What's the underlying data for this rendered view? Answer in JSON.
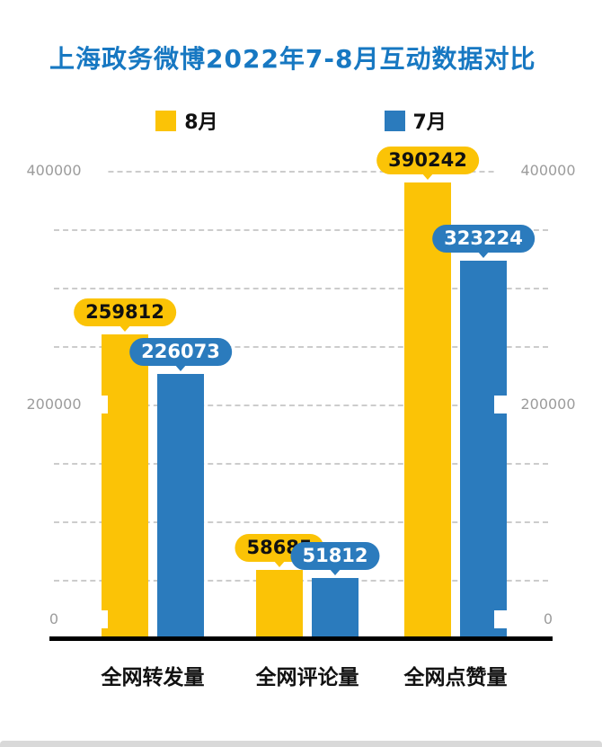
{
  "title": "上海政务微博2022年7-8月互动数据对比",
  "chart_data": {
    "type": "bar",
    "title": "上海政务微博2022年7-8月互动数据对比",
    "categories": [
      "全网转发量",
      "全网评论量",
      "全网点赞量"
    ],
    "series": [
      {
        "name": "8月",
        "color": "#FBC306",
        "label_text_color": "#111111",
        "values": [
          259812,
          58685,
          390242
        ]
      },
      {
        "name": "7月",
        "color": "#2B7BBD",
        "label_text_color": "#ffffff",
        "values": [
          226073,
          51812,
          323224
        ]
      }
    ],
    "data_labels": {
      "8月": [
        "259812",
        "58685",
        "390242"
      ],
      "7月": [
        "226073",
        "51812",
        "323224"
      ]
    },
    "ylim": [
      0,
      400000
    ],
    "ytick_values": [
      0,
      200000,
      400000
    ],
    "ytick_labels": [
      "0",
      "200000",
      "400000"
    ],
    "gridline_step": 50000,
    "grid": "dashed-horizontal",
    "legend_position": "top-center",
    "axis_tick_sides": "both-left-and-right"
  },
  "colors": {
    "title_text": "#1778C2",
    "august_bar": "#FBC306",
    "july_bar": "#2B7BBD",
    "tick_label": "#9c9c9c",
    "gridline": "#cccccc",
    "axis_line": "#000000",
    "background": "#ffffff"
  }
}
